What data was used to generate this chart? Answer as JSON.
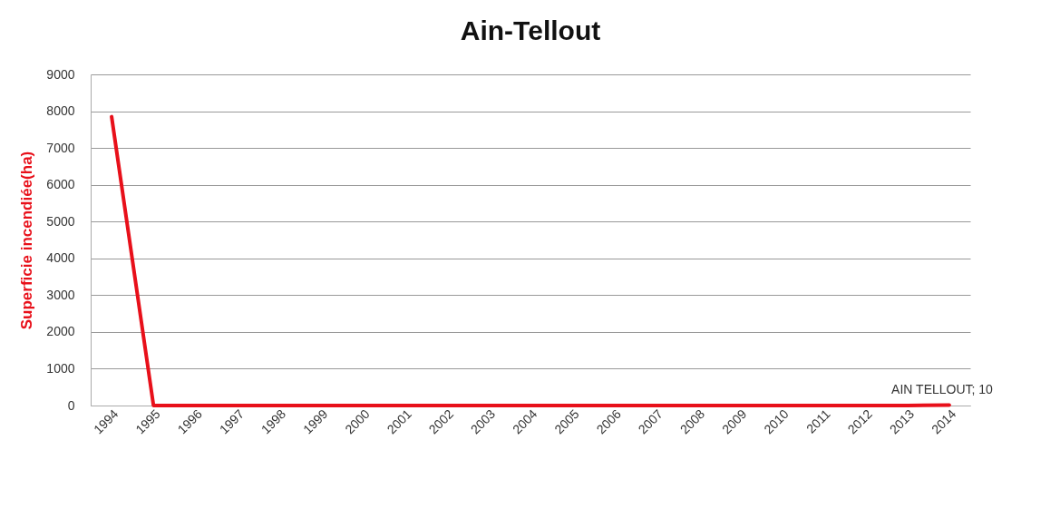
{
  "chart_data": {
    "type": "line",
    "title": "Ain-Tellout",
    "ylabel": "Superficie incendiée(ha)",
    "categories": [
      "1994",
      "1995",
      "1996",
      "1997",
      "1998",
      "1999",
      "2000",
      "2001",
      "2002",
      "2003",
      "2004",
      "2005",
      "2006",
      "2007",
      "2008",
      "2009",
      "2010",
      "2011",
      "2012",
      "2013",
      "2014"
    ],
    "series": [
      {
        "color": "#e8101a",
        "values": [
          7850,
          0,
          0,
          0,
          0,
          0,
          0,
          0,
          0,
          0,
          0,
          0,
          0,
          0,
          0,
          0,
          0,
          0,
          0,
          0,
          10
        ]
      }
    ],
    "ylim": [
      0,
      9000
    ],
    "yticks": [
      0,
      1000,
      2000,
      3000,
      4000,
      5000,
      6000,
      7000,
      8000,
      9000
    ],
    "grid": "y",
    "marker": "none",
    "line_style": "solid",
    "annotations": [
      {
        "text": "AIN TELLOUT; 10",
        "x": "2014",
        "y": 10
      }
    ]
  }
}
